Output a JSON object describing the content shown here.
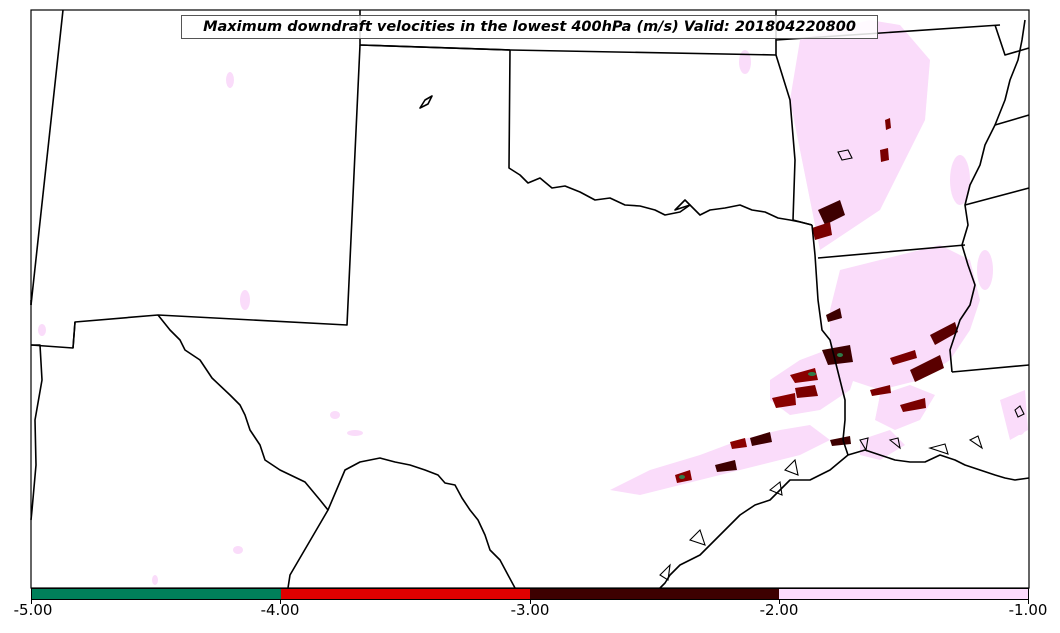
{
  "title": "Maximum downdraft velocities in the lowest 400hPa (m/s) Valid: 201804220800",
  "colorbar": {
    "ticks": [
      "-5.00",
      "-4.00",
      "-3.00",
      "-2.00",
      "-1.00"
    ],
    "segments": [
      {
        "range": "-5 to -4",
        "color": "#00805a"
      },
      {
        "range": "-4 to -3",
        "color": "#e00000"
      },
      {
        "range": "-3 to -2",
        "color": "#3d0000"
      },
      {
        "range": "-2 to -1",
        "color": "#fcdcfc"
      }
    ]
  }
}
